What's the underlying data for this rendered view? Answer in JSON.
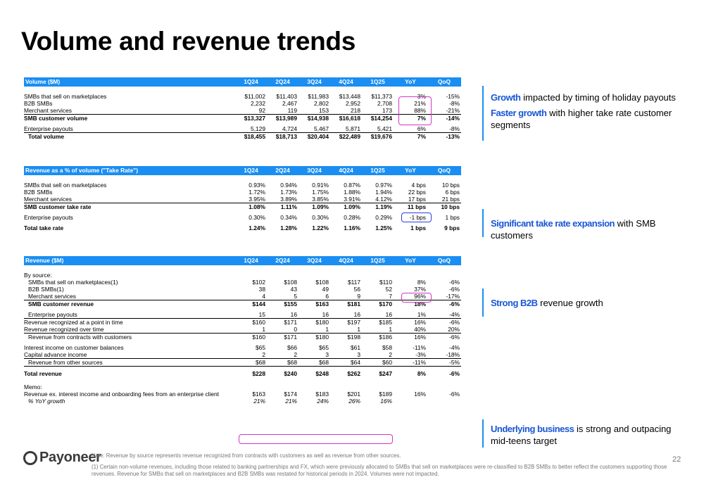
{
  "title": "Volume and revenue trends",
  "tables": {
    "volume": {
      "header": [
        "Volume ($M)",
        "1Q24",
        "2Q24",
        "3Q24",
        "4Q24",
        "1Q25",
        "YoY",
        "QoQ"
      ],
      "rows": [
        [
          "SMBs that sell on marketplaces",
          "$11,002",
          "$11,403",
          "$11,983",
          "$13,448",
          "$11,373",
          "3%",
          "-15%"
        ],
        [
          "B2B SMBs",
          "2,232",
          "2,467",
          "2,802",
          "2,952",
          "2,708",
          "21%",
          "-8%"
        ],
        [
          "Merchant services",
          "92",
          "119",
          "153",
          "218",
          "173",
          "88%",
          "-21%"
        ],
        [
          "SMB customer volume",
          "$13,327",
          "$13,989",
          "$14,938",
          "$16,618",
          "$14,254",
          "7%",
          "-14%"
        ],
        [
          "Enterprise payouts",
          "5,129",
          "4,724",
          "5,467",
          "5,871",
          "5,421",
          "6%",
          "-8%"
        ],
        [
          "Total volume",
          "$18,455",
          "$18,713",
          "$20,404",
          "$22,489",
          "$19,676",
          "7%",
          "-13%"
        ]
      ]
    },
    "takerate": {
      "header": [
        "Revenue as a % of volume (\"Take Rate\")",
        "1Q24",
        "2Q24",
        "3Q24",
        "4Q24",
        "1Q25",
        "YoY",
        "QoQ"
      ],
      "rows": [
        [
          "SMBs that sell on marketplaces",
          "0.93%",
          "0.94%",
          "0.91%",
          "0.87%",
          "0.97%",
          "4 bps",
          "10 bps"
        ],
        [
          "B2B SMBs",
          "1.72%",
          "1.73%",
          "1.75%",
          "1.88%",
          "1.94%",
          "22 bps",
          "6 bps"
        ],
        [
          "Merchant services",
          "3.95%",
          "3.89%",
          "3.85%",
          "3.91%",
          "4.12%",
          "17 bps",
          "21 bps"
        ],
        [
          "SMB customer take rate",
          "1.08%",
          "1.11%",
          "1.09%",
          "1.09%",
          "1.19%",
          "11 bps",
          "10 bps"
        ],
        [
          "Enterprise payouts",
          "0.30%",
          "0.34%",
          "0.30%",
          "0.28%",
          "0.29%",
          "-1 bps",
          "1 bps"
        ],
        [
          "Total take rate",
          "1.24%",
          "1.28%",
          "1.22%",
          "1.16%",
          "1.25%",
          "1 bps",
          "9 bps"
        ]
      ]
    },
    "revenue": {
      "header": [
        "Revenue ($M)",
        "1Q24",
        "2Q24",
        "3Q24",
        "4Q24",
        "1Q25",
        "YoY",
        "QoQ"
      ],
      "by_source": "By source:",
      "rows": [
        [
          "SMBs that sell on marketplaces(1)",
          "$102",
          "$108",
          "$108",
          "$117",
          "$110",
          "8%",
          "-6%"
        ],
        [
          "B2B SMBs(1)",
          "38",
          "43",
          "49",
          "56",
          "52",
          "37%",
          "-6%"
        ],
        [
          "Merchant services",
          "4",
          "5",
          "6",
          "9",
          "7",
          "96%",
          "-17%"
        ],
        [
          "SMB customer revenue",
          "$144",
          "$155",
          "$163",
          "$181",
          "$170",
          "18%",
          "-6%"
        ],
        [
          "Enterprise payouts",
          "15",
          "16",
          "16",
          "16",
          "16",
          "1%",
          "-4%"
        ],
        [
          "Revenue recognized at a point in time",
          "$160",
          "$171",
          "$180",
          "$197",
          "$185",
          "16%",
          "-6%"
        ],
        [
          "Revenue recognized over time",
          "1",
          "0",
          "1",
          "1",
          "1",
          "40%",
          "20%"
        ],
        [
          "Revenue from contracts with customers",
          "$160",
          "$171",
          "$180",
          "$198",
          "$186",
          "16%",
          "-6%"
        ],
        [
          "Interest income on customer balances",
          "$65",
          "$66",
          "$65",
          "$61",
          "$58",
          "-11%",
          "-4%"
        ],
        [
          "Capital advance income",
          "2",
          "2",
          "3",
          "3",
          "2",
          "-3%",
          "-18%"
        ],
        [
          "Revenue from other sources",
          "$68",
          "$68",
          "$68",
          "$64",
          "$60",
          "-11%",
          "-5%"
        ],
        [
          "Total revenue",
          "$228",
          "$240",
          "$248",
          "$262",
          "$247",
          "8%",
          "-6%"
        ]
      ],
      "memo": "Memo:",
      "memo_rows": [
        [
          "Revenue ex. interest income and onboarding fees from an enterprise client",
          "$163",
          "$174",
          "$183",
          "$201",
          "$189",
          "16%",
          "-6%"
        ],
        [
          "% YoY growth",
          "21%",
          "21%",
          "24%",
          "26%",
          "16%",
          "",
          ""
        ]
      ]
    }
  },
  "callouts": [
    {
      "label": "Growth",
      "text": " impacted by timing of holiday payouts"
    },
    {
      "label": "Faster growth",
      "text": " with higher take rate customer segments"
    },
    {
      "label": "Significant take rate expansion",
      "text": " with SMB customers"
    },
    {
      "label": "Strong B2B",
      "text": " revenue growth"
    },
    {
      "label": "Underlying business",
      "text": " is strong and outpacing mid-teens target"
    }
  ],
  "logo": "Payoneer",
  "note_1": "Note: Revenue by source represents revenue recognized from contracts with customers as well as revenue from other sources.",
  "note_2": "(1) Certain non-volume revenues, including those related to banking partnerships and FX, which were previously allocated to SMBs that sell on marketplaces were re-classified to B2B SMBs to better reflect the customers supporting those revenues. Revenue for SMBs that sell on marketplaces and B2B SMBs was restated for historical periods in 2024. Volumes were not impacted.",
  "page_number": "22",
  "colors": {
    "header_bg": "#1a8ef2",
    "highlight_blue": "#2b3fe0",
    "highlight_pink": "#d236c9",
    "callout_label": "#1756d6"
  }
}
